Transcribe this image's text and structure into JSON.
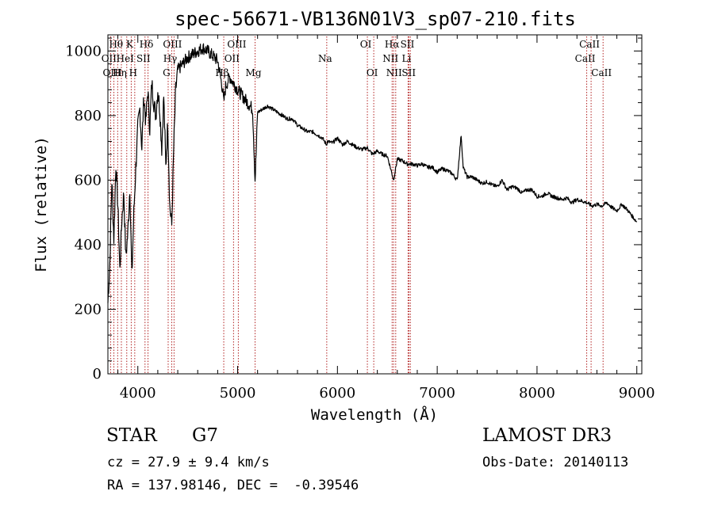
{
  "chart_data": {
    "type": "line",
    "title": "spec-56671-VB136N01V3_sp07-210.fits",
    "xlabel": "Wavelength (Å)",
    "ylabel": "Flux (relative)",
    "xlim": [
      3700,
      9050
    ],
    "ylim": [
      0,
      1050
    ],
    "x_ticks": [
      4000,
      5000,
      6000,
      7000,
      8000,
      9000
    ],
    "x_tick_labels": [
      "4000",
      "5000",
      "6000",
      "7000",
      "8000",
      "9000"
    ],
    "y_ticks": [
      0,
      200,
      400,
      600,
      800,
      1000
    ],
    "y_tick_labels": [
      "0",
      "200",
      "400",
      "600",
      "800",
      "1000"
    ],
    "grid": false,
    "series": [
      {
        "name": "spectrum",
        "x": [
          3700,
          3720,
          3740,
          3760,
          3780,
          3800,
          3820,
          3840,
          3860,
          3880,
          3900,
          3920,
          3940,
          3960,
          3980,
          4000,
          4020,
          4040,
          4060,
          4080,
          4100,
          4120,
          4140,
          4160,
          4180,
          4200,
          4220,
          4240,
          4260,
          4280,
          4300,
          4320,
          4340,
          4360,
          4380,
          4400,
          4450,
          4500,
          4550,
          4600,
          4650,
          4700,
          4750,
          4800,
          4850,
          4861,
          4880,
          4920,
          4960,
          5000,
          5050,
          5100,
          5150,
          5175,
          5185,
          5200,
          5250,
          5300,
          5350,
          5400,
          5450,
          5500,
          5550,
          5600,
          5650,
          5700,
          5750,
          5800,
          5850,
          5890,
          5900,
          5950,
          6000,
          6050,
          6100,
          6150,
          6200,
          6250,
          6300,
          6350,
          6400,
          6450,
          6500,
          6563,
          6600,
          6650,
          6700,
          6750,
          6800,
          6850,
          6900,
          6950,
          7000,
          7050,
          7100,
          7150,
          7200,
          7240,
          7260,
          7300,
          7350,
          7400,
          7450,
          7500,
          7550,
          7600,
          7650,
          7700,
          7750,
          7800,
          7850,
          7900,
          7950,
          8000,
          8050,
          8100,
          8150,
          8200,
          8250,
          8300,
          8350,
          8400,
          8450,
          8500,
          8550,
          8600,
          8650,
          8700,
          8750,
          8800,
          8850,
          8900,
          8950,
          9000
        ],
        "y": [
          220,
          350,
          600,
          420,
          650,
          520,
          320,
          480,
          560,
          360,
          440,
          580,
          300,
          500,
          640,
          760,
          820,
          700,
          860,
          780,
          880,
          760,
          900,
          840,
          800,
          880,
          820,
          700,
          860,
          640,
          780,
          520,
          460,
          700,
          880,
          940,
          960,
          980,
          990,
          1000,
          1010,
          1000,
          985,
          970,
          880,
          840,
          890,
          920,
          900,
          880,
          860,
          840,
          820,
          600,
          680,
          810,
          820,
          830,
          820,
          810,
          800,
          790,
          790,
          770,
          760,
          750,
          750,
          740,
          730,
          710,
          720,
          715,
          730,
          710,
          720,
          710,
          700,
          695,
          700,
          680,
          690,
          680,
          675,
          600,
          665,
          660,
          650,
          650,
          645,
          650,
          640,
          640,
          625,
          635,
          630,
          620,
          600,
          740,
          640,
          610,
          610,
          600,
          590,
          595,
          585,
          580,
          600,
          570,
          580,
          575,
          560,
          570,
          570,
          550,
          550,
          560,
          550,
          545,
          540,
          545,
          530,
          540,
          535,
          530,
          520,
          525,
          520,
          530,
          515,
          505,
          525,
          510,
          490,
          470
        ]
      }
    ],
    "line_markers": [
      {
        "name": "Hθ",
        "wavelength": 3798,
        "row": 1
      },
      {
        "name": "OII",
        "wavelength": 3727,
        "row": 2
      },
      {
        "name": "OIII",
        "wavelength": 3760,
        "row": 3
      },
      {
        "name": "Hη",
        "wavelength": 3835,
        "row": 3
      },
      {
        "name": "HeI",
        "wavelength": 3889,
        "row": 2
      },
      {
        "name": "K",
        "wavelength": 3934,
        "row": 1
      },
      {
        "name": "SII",
        "wavelength": 4072,
        "row": 2
      },
      {
        "name": "H",
        "wavelength": 3969,
        "row": 3
      },
      {
        "name": "Hδ",
        "wavelength": 4102,
        "row": 1
      },
      {
        "name": "OIII",
        "wavelength": 4363,
        "row": 1
      },
      {
        "name": "Hγ",
        "wavelength": 4340,
        "row": 2
      },
      {
        "name": "G",
        "wavelength": 4304,
        "row": 3
      },
      {
        "name": "OIII",
        "wavelength": 5007,
        "row": 1
      },
      {
        "name": "OII",
        "wavelength": 4959,
        "row": 2
      },
      {
        "name": "Hβ",
        "wavelength": 4861,
        "row": 3
      },
      {
        "name": "Mg",
        "wavelength": 5175,
        "row": 3
      },
      {
        "name": "Na",
        "wavelength": 5893,
        "row": 2
      },
      {
        "name": "OI",
        "wavelength": 6300,
        "row": 1
      },
      {
        "name": "OI",
        "wavelength": 6364,
        "row": 3
      },
      {
        "name": "Hα",
        "wavelength": 6563,
        "row": 1
      },
      {
        "name": "NII",
        "wavelength": 6548,
        "row": 2
      },
      {
        "name": "NII",
        "wavelength": 6584,
        "row": 3
      },
      {
        "name": "SII",
        "wavelength": 6717,
        "row": 1
      },
      {
        "name": "Li",
        "wavelength": 6708,
        "row": 2
      },
      {
        "name": "SII",
        "wavelength": 6731,
        "row": 3
      },
      {
        "name": "CaII",
        "wavelength": 8542,
        "row": 1
      },
      {
        "name": "CaII",
        "wavelength": 8498,
        "row": 2
      },
      {
        "name": "CaII",
        "wavelength": 8662,
        "row": 3
      }
    ],
    "line_color": "#000000",
    "marker_color": "#b22222"
  },
  "info": {
    "object_class": "STAR",
    "subclass": "G7",
    "survey": "LAMOST DR3",
    "redshift": "cz = 27.9 ± 9.4 km/s",
    "obs_date": "Obs-Date: 20140113",
    "coords": "RA = 137.98146, DEC =  -0.39546"
  }
}
